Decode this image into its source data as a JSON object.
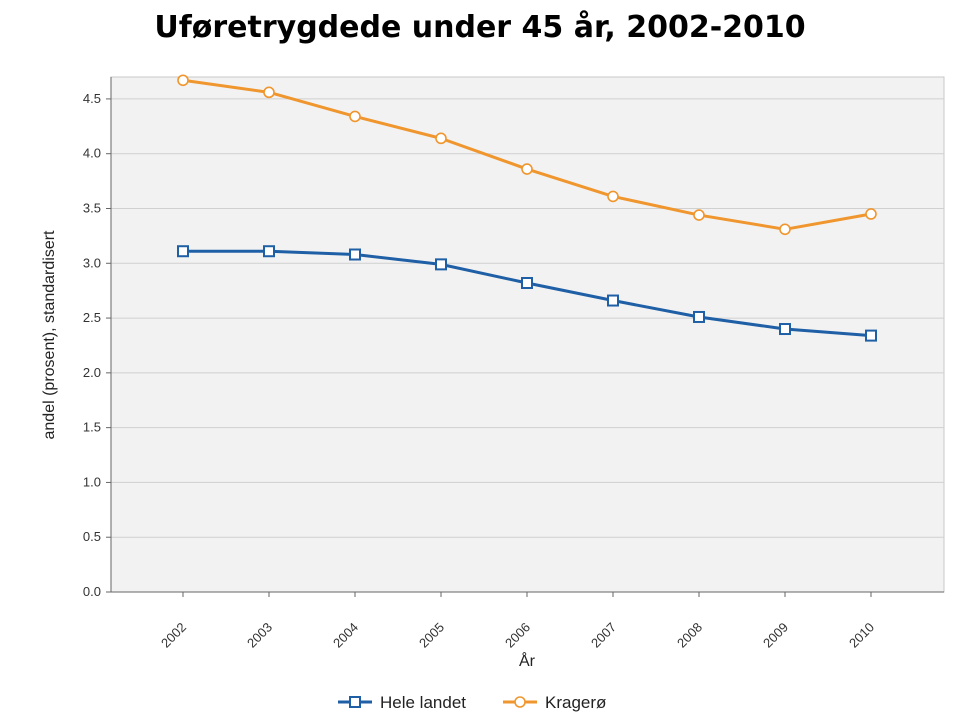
{
  "title": "Uføretrygdede under 45 år, 2002-2010",
  "chart_data": {
    "type": "line",
    "title": "Uføretrygdede under 45 år, 2002-2010",
    "xlabel": "År",
    "ylabel": "andel (prosent), standardisert",
    "x": [
      "2002",
      "2003",
      "2004",
      "2005",
      "2006",
      "2007",
      "2008",
      "2009",
      "2010"
    ],
    "ylim": [
      0,
      4.7
    ],
    "yticks": [
      "0.0",
      "0.5",
      "1.0",
      "1.5",
      "2.0",
      "2.5",
      "3.0",
      "3.5",
      "4.0",
      "4.5"
    ],
    "grid": true,
    "legend_position": "bottom",
    "series": [
      {
        "name": "Hele landet",
        "color": "#1f5fa6",
        "marker": "square",
        "values": [
          3.11,
          3.11,
          3.08,
          2.99,
          2.82,
          2.66,
          2.51,
          2.4,
          2.34
        ]
      },
      {
        "name": "Kragerø",
        "color": "#f0962e",
        "marker": "circle",
        "values": [
          4.67,
          4.56,
          4.34,
          4.14,
          3.86,
          3.61,
          3.44,
          3.31,
          3.45
        ]
      }
    ]
  }
}
